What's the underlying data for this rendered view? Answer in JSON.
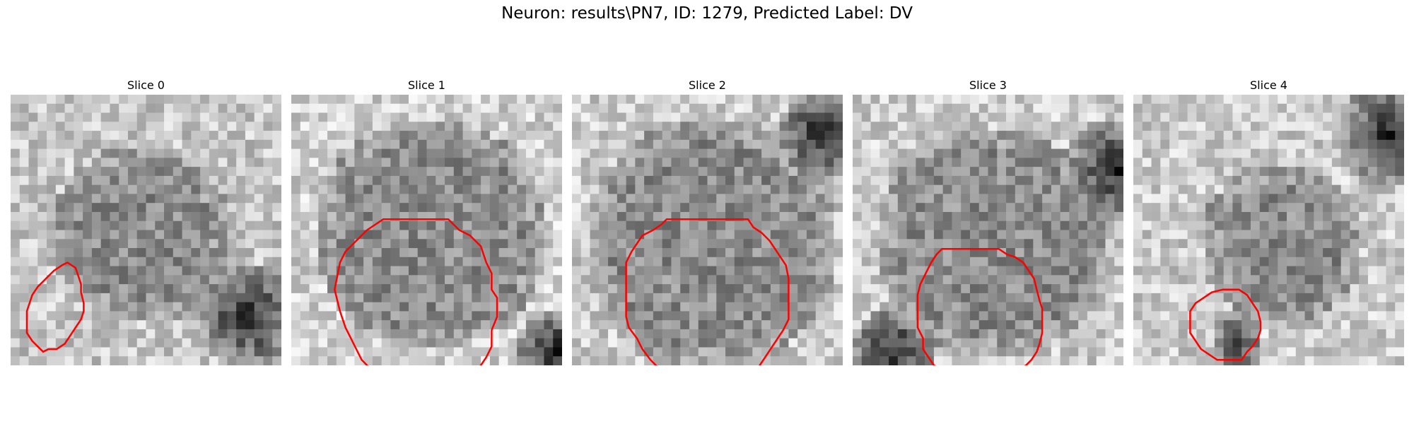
{
  "figure": {
    "title": "Neuron: results\\PN7, ID: 1279, Predicted Label: DV",
    "contour_color": "#ff0000"
  },
  "slices": [
    {
      "title": "Slice 0"
    },
    {
      "title": "Slice 1"
    },
    {
      "title": "Slice 2"
    },
    {
      "title": "Slice 3"
    },
    {
      "title": "Slice 4"
    }
  ]
}
